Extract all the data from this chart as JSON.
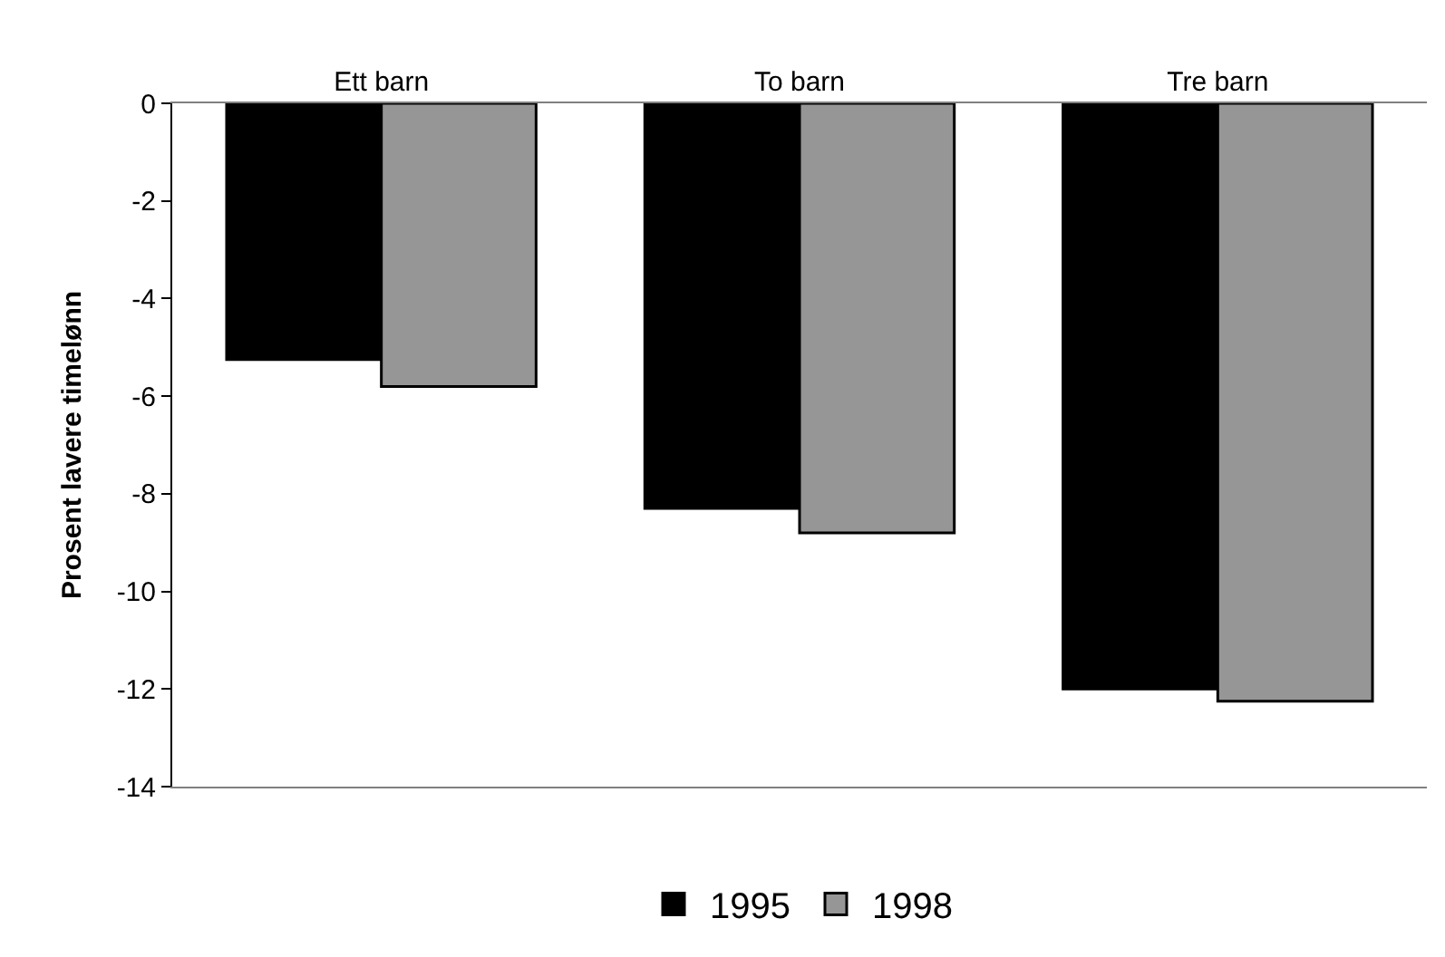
{
  "chart_data": {
    "type": "bar",
    "ylabel": "Prosent lavere timelønn",
    "categories": [
      "Ett barn",
      "To barn",
      "Tre barn"
    ],
    "series": [
      {
        "name": "1995",
        "color": "#000000",
        "values": [
          -5.25,
          -8.3,
          -12.0
        ]
      },
      {
        "name": "1998",
        "color": "#969696",
        "values": [
          -5.8,
          -8.8,
          -12.25
        ]
      }
    ],
    "ylim": [
      -14,
      0
    ],
    "yticks": [
      0,
      -2,
      -4,
      -6,
      -8,
      -10,
      -12,
      -14
    ],
    "legend": "bottom"
  }
}
